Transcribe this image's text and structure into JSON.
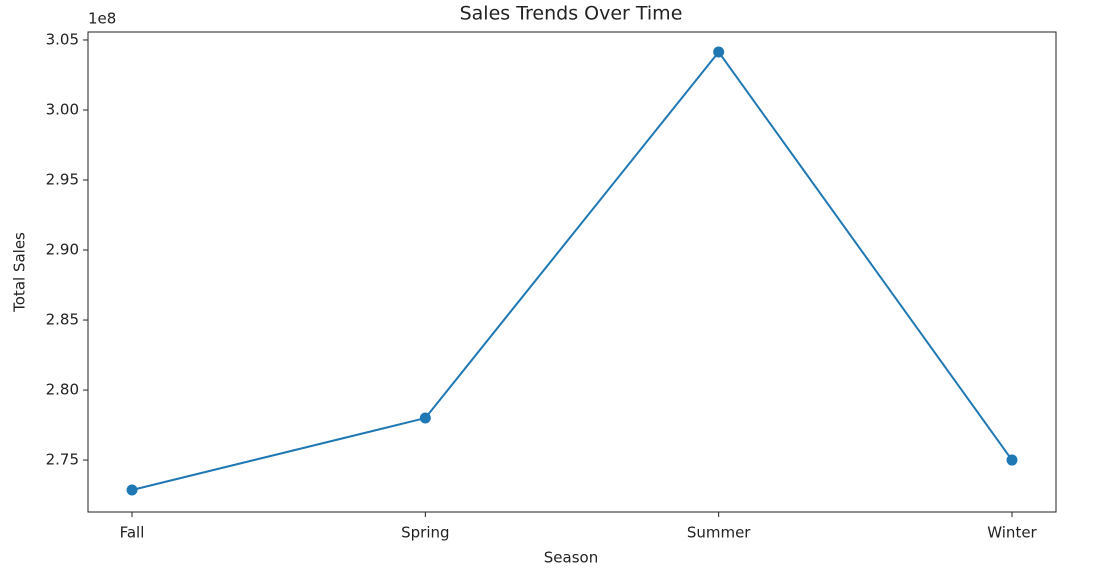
{
  "chart_data": {
    "type": "line",
    "title": "Sales Trends Over Time",
    "x_label": "Season",
    "y_label": "Total Sales",
    "y_offset_label": "1e8",
    "categories": [
      "Fall",
      "Spring",
      "Summer",
      "Winter"
    ],
    "series": [
      {
        "name": "Total Sales",
        "color": "#1f77b4",
        "values": [
          2.7286,
          2.78,
          3.0414,
          2.75
        ]
      }
    ],
    "ylim": [
      2.7129,
      3.0557
    ],
    "yticks": [
      {
        "value": 2.75,
        "label": "2.75"
      },
      {
        "value": 2.8,
        "label": "2.80"
      },
      {
        "value": 2.85,
        "label": "2.85"
      },
      {
        "value": 2.9,
        "label": "2.90"
      },
      {
        "value": 2.95,
        "label": "2.95"
      },
      {
        "value": 3.0,
        "label": "3.00"
      },
      {
        "value": 3.05,
        "label": "3.05"
      }
    ],
    "grid": false,
    "markers": true
  }
}
